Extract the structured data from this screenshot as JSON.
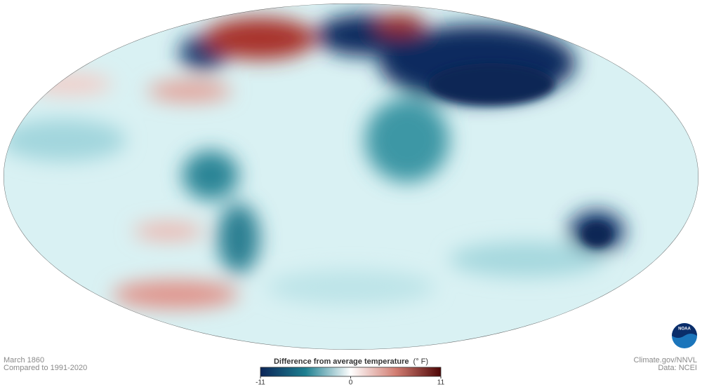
{
  "map": {
    "caption": {
      "date": "March 1860",
      "baseline": "Compared to 1991-2020"
    },
    "credits": {
      "source": "Climate.gov/NNVL",
      "data": "Data: NCEI"
    },
    "legend": {
      "title": "Difference from average temperature",
      "unit": "(° F)",
      "range": [
        -11,
        11
      ],
      "ticks": [
        -11,
        0,
        11
      ]
    }
  }
}
